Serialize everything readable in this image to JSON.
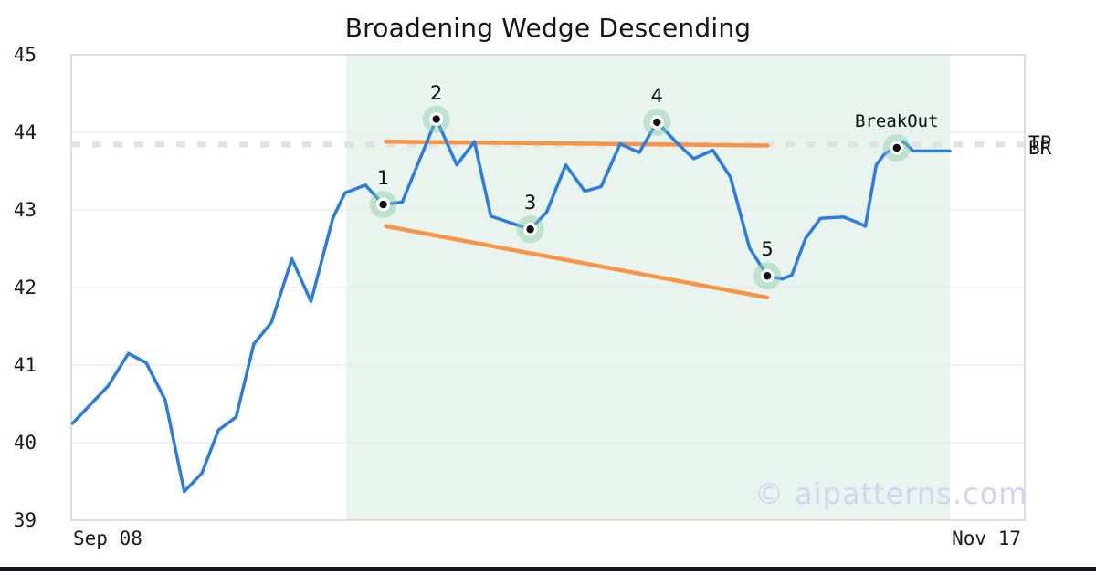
{
  "title": "Broadening Wedge Descending",
  "watermark": "© aipatterns.com",
  "labels": {
    "breakout": "BreakOut",
    "tp": "TP",
    "br": "BR"
  },
  "colors": {
    "price_line": "#2b7ce0",
    "wedge_line": "#f79446",
    "pattern_zone": "#e9f4ef",
    "level_dash": "#e2e2e2",
    "marker_halo": "rgba(135,205,165,0.45)",
    "marker_ring": "#ffffff",
    "marker_dot": "#111111",
    "grid": "#eaeaea",
    "border": "#d4d4d4",
    "footer_bar": "#141824",
    "watermark_color": "#d4d4f0",
    "title_color": "#151515"
  },
  "chart_data": {
    "type": "line",
    "title": "Broadening Wedge Descending",
    "ylabel": "",
    "xlabel": "",
    "ylim": [
      39,
      45
    ],
    "yticks": [
      45,
      44,
      43,
      42,
      41,
      40,
      39
    ],
    "xlim_days": [
      0,
      70
    ],
    "xticks": [
      {
        "label": "Sep 08",
        "align": "left"
      },
      {
        "label": "Nov 17",
        "align": "right"
      }
    ],
    "grid": true,
    "series": [
      {
        "name": "price",
        "points": [
          [
            0.1,
            40.25
          ],
          [
            2.7,
            40.73
          ],
          [
            4.2,
            41.15
          ],
          [
            5.5,
            41.03
          ],
          [
            6.9,
            40.55
          ],
          [
            8.3,
            39.37
          ],
          [
            9.6,
            39.61
          ],
          [
            10.8,
            40.16
          ],
          [
            12.1,
            40.33
          ],
          [
            13.4,
            41.27
          ],
          [
            14.7,
            41.55
          ],
          [
            16.2,
            42.37
          ],
          [
            17.6,
            41.82
          ],
          [
            19.2,
            42.89
          ],
          [
            20.1,
            43.22
          ],
          [
            21.6,
            43.32
          ],
          [
            22.9,
            43.07
          ],
          [
            24.3,
            43.1
          ],
          [
            26.8,
            44.17
          ],
          [
            28.3,
            43.58
          ],
          [
            29.6,
            43.88
          ],
          [
            30.8,
            42.92
          ],
          [
            31.8,
            42.86
          ],
          [
            33.7,
            42.75
          ],
          [
            34.9,
            42.97
          ],
          [
            36.3,
            43.58
          ],
          [
            37.7,
            43.24
          ],
          [
            38.9,
            43.3
          ],
          [
            40.3,
            43.85
          ],
          [
            41.7,
            43.74
          ],
          [
            43.0,
            44.13
          ],
          [
            44.6,
            43.84
          ],
          [
            45.7,
            43.66
          ],
          [
            47.1,
            43.77
          ],
          [
            48.4,
            43.42
          ],
          [
            49.8,
            42.51
          ],
          [
            51.1,
            42.15
          ],
          [
            52.2,
            42.11
          ],
          [
            52.9,
            42.16
          ],
          [
            53.9,
            42.63
          ],
          [
            55.0,
            42.89
          ],
          [
            56.7,
            42.91
          ],
          [
            57.7,
            42.84
          ],
          [
            58.3,
            42.79
          ],
          [
            59.1,
            43.58
          ],
          [
            59.7,
            43.72
          ],
          [
            60.6,
            43.82
          ],
          [
            61.1,
            43.88
          ],
          [
            61.8,
            43.76
          ],
          [
            64.5,
            43.76
          ]
        ]
      }
    ],
    "wedge_lines": {
      "upper": [
        [
          23.1,
          43.88
        ],
        [
          51.1,
          43.83
        ]
      ],
      "lower": [
        [
          23.1,
          42.79
        ],
        [
          51.1,
          41.87
        ]
      ]
    },
    "level_lines": [
      {
        "value": 43.86,
        "label": "TP",
        "style": "dashed"
      },
      {
        "value": 43.83,
        "label": "BR",
        "style": "dashed"
      }
    ],
    "pattern_zone": {
      "start_day": 20.2,
      "end_day": 64.5
    },
    "markers": [
      {
        "label": "1",
        "day": 22.9,
        "price": 43.07
      },
      {
        "label": "2",
        "day": 26.8,
        "price": 44.17
      },
      {
        "label": "3",
        "day": 33.7,
        "price": 42.75
      },
      {
        "label": "4",
        "day": 43.0,
        "price": 44.13
      },
      {
        "label": "5",
        "day": 51.1,
        "price": 42.15
      },
      {
        "label": "BreakOut",
        "day": 60.6,
        "price": 43.8,
        "mono": true
      }
    ]
  }
}
